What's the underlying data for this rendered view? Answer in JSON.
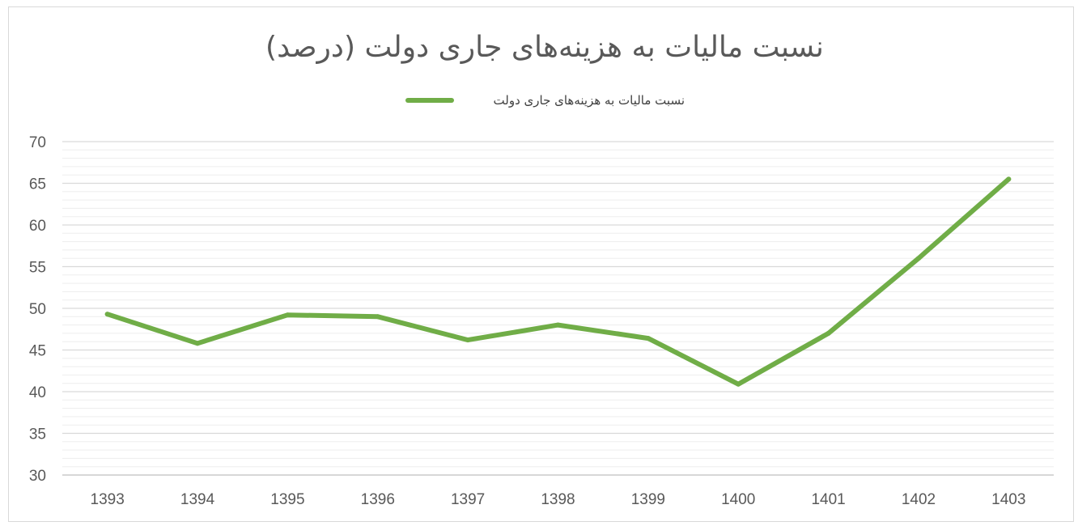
{
  "chart_data": {
    "type": "line",
    "title": "نسبت مالیات به هزینه‌های جاری دولت (درصد)",
    "xlabel": "",
    "ylabel": "",
    "categories": [
      "1393",
      "1394",
      "1395",
      "1396",
      "1397",
      "1398",
      "1399",
      "1400",
      "1401",
      "1402",
      "1403"
    ],
    "series": [
      {
        "name": "نسبت مالیات به هزینه‌های جاری دولت",
        "color": "#70ad47",
        "values": [
          49.3,
          45.8,
          49.2,
          49.0,
          46.2,
          48.0,
          46.4,
          40.9,
          47.0,
          56.0,
          65.5
        ]
      }
    ],
    "ylim": [
      30,
      70
    ],
    "yticks": [
      30,
      35,
      40,
      45,
      50,
      55,
      60,
      65,
      70
    ],
    "grid": true,
    "minor_grid": true,
    "legend_position": "top-center"
  }
}
